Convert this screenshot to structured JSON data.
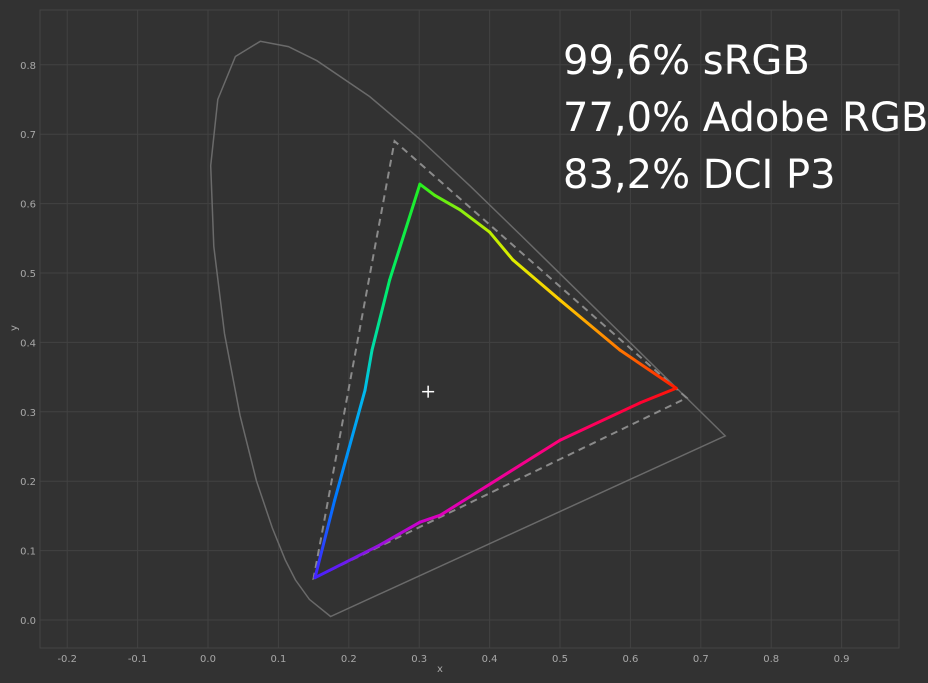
{
  "chart_data": {
    "type": "line",
    "title": "",
    "xlabel": "x",
    "ylabel": "y",
    "xlim": [
      -0.24,
      0.98
    ],
    "ylim": [
      -0.04,
      0.88
    ],
    "grid": true,
    "x_ticks": [
      "-0.2",
      "-0.1",
      "0.0",
      "0.1",
      "0.2",
      "0.3",
      "0.4",
      "0.5",
      "0.6",
      "0.7",
      "0.8",
      "0.9"
    ],
    "x_tick_values": [
      -0.2,
      -0.1,
      0,
      0.1,
      0.2,
      0.3,
      0.4,
      0.5,
      0.6,
      0.7,
      0.8,
      0.9
    ],
    "y_ticks": [
      "0.0",
      "0.1",
      "0.2",
      "0.3",
      "0.4",
      "0.5",
      "0.6",
      "0.7",
      "0.8"
    ],
    "y_tick_values": [
      0,
      0.1,
      0.2,
      0.3,
      0.4,
      0.5,
      0.6,
      0.7,
      0.8
    ],
    "annotations": [
      "99,6% sRGB",
      "77,0% Adobe RGB",
      "83,2% DCI P3"
    ],
    "spectral_locus": [
      [
        0.1741,
        0.005
      ],
      [
        0.144,
        0.0297
      ],
      [
        0.1241,
        0.0578
      ],
      [
        0.1096,
        0.0868
      ],
      [
        0.0913,
        0.1327
      ],
      [
        0.0687,
        0.2007
      ],
      [
        0.0454,
        0.295
      ],
      [
        0.0235,
        0.4127
      ],
      [
        0.0082,
        0.5384
      ],
      [
        0.0039,
        0.6548
      ],
      [
        0.0139,
        0.7502
      ],
      [
        0.0389,
        0.812
      ],
      [
        0.0743,
        0.8338
      ],
      [
        0.1142,
        0.8262
      ],
      [
        0.1547,
        0.8059
      ],
      [
        0.2296,
        0.7543
      ],
      [
        0.3016,
        0.6923
      ],
      [
        0.3731,
        0.6245
      ],
      [
        0.4441,
        0.5547
      ],
      [
        0.5125,
        0.4866
      ],
      [
        0.5752,
        0.4242
      ],
      [
        0.627,
        0.3725
      ],
      [
        0.6915,
        0.3083
      ],
      [
        0.7347,
        0.2653
      ]
    ],
    "reference_gamut": [
      [
        0.68,
        0.32
      ],
      [
        0.265,
        0.69
      ],
      [
        0.15,
        0.06
      ]
    ],
    "measured_gamut": [
      {
        "x": 0.301,
        "y": 0.628,
        "color": "#22ee22"
      },
      {
        "x": 0.322,
        "y": 0.612,
        "color": "#55ee11"
      },
      {
        "x": 0.358,
        "y": 0.591,
        "color": "#88ee11"
      },
      {
        "x": 0.4,
        "y": 0.559,
        "color": "#bbee00"
      },
      {
        "x": 0.433,
        "y": 0.519,
        "color": "#ddee00"
      },
      {
        "x": 0.5,
        "y": 0.461,
        "color": "#ffcc00"
      },
      {
        "x": 0.585,
        "y": 0.389,
        "color": "#ff7700"
      },
      {
        "x": 0.665,
        "y": 0.334,
        "color": "#ff1a00"
      },
      {
        "x": 0.614,
        "y": 0.313,
        "color": "#ff0033"
      },
      {
        "x": 0.5,
        "y": 0.259,
        "color": "#ff0077"
      },
      {
        "x": 0.33,
        "y": 0.151,
        "color": "#dd00bb"
      },
      {
        "x": 0.301,
        "y": 0.141,
        "color": "#cc00cc"
      },
      {
        "x": 0.244,
        "y": 0.108,
        "color": "#9911dd"
      },
      {
        "x": 0.152,
        "y": 0.061,
        "color": "#4422ff"
      },
      {
        "x": 0.18,
        "y": 0.173,
        "color": "#0077ff"
      },
      {
        "x": 0.223,
        "y": 0.331,
        "color": "#00bbee"
      },
      {
        "x": 0.233,
        "y": 0.389,
        "color": "#00ddaa"
      },
      {
        "x": 0.258,
        "y": 0.49,
        "color": "#00ee66"
      },
      {
        "x": 0.301,
        "y": 0.628,
        "color": "#22ee22"
      }
    ],
    "white_point": [
      0.3127,
      0.329
    ]
  },
  "colors": {
    "background": "#323232",
    "grid": "#424242",
    "locus": "#6a6a6a",
    "reference": "#8a8a8a",
    "text": "#ffffff"
  }
}
